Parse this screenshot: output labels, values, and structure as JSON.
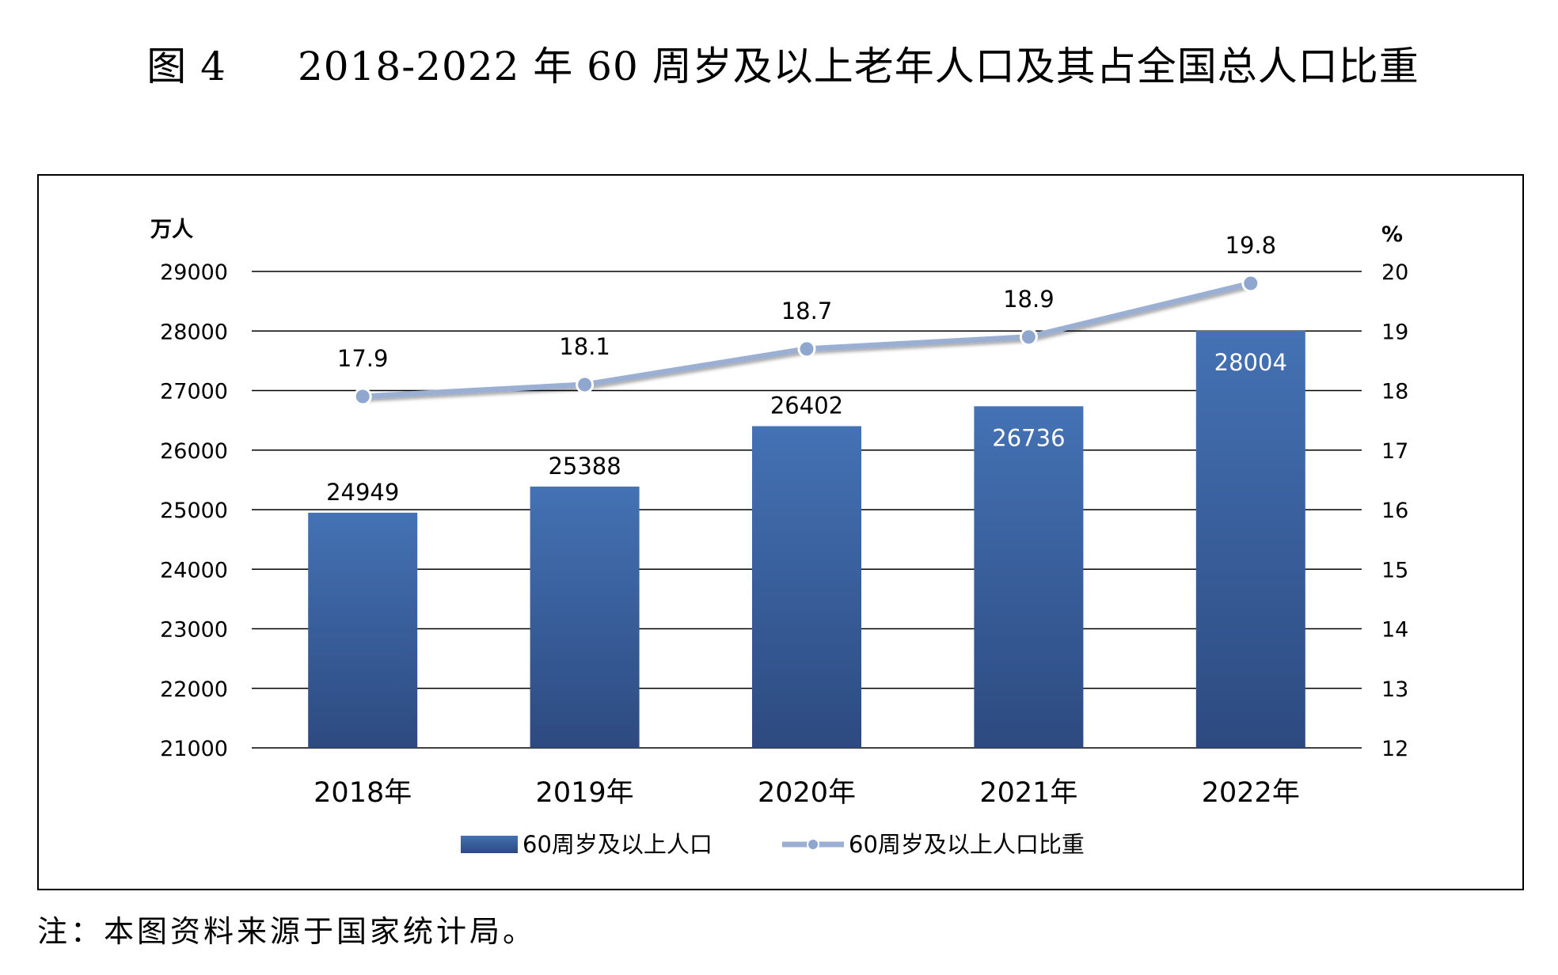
{
  "figure": {
    "label": "图 4",
    "title": "2018-2022 年 60 周岁及以上老年人口及其占全国总人口比重"
  },
  "note": "注：本图资料来源于国家统计局。",
  "colors": {
    "bar_top": "#4472b4",
    "bar_bottom": "#2d4a80",
    "line": "#9bafd3",
    "line_marker": "#8fa6cf",
    "gridline": "#000000"
  },
  "chart_data": {
    "type": "bar",
    "categories": [
      "2018年",
      "2019年",
      "2020年",
      "2021年",
      "2022年"
    ],
    "y_left": {
      "unit_label": "万人",
      "range": [
        21000,
        29000
      ],
      "ticks": [
        "21000",
        "22000",
        "23000",
        "24000",
        "25000",
        "26000",
        "27000",
        "28000",
        "29000"
      ]
    },
    "y_right": {
      "unit_label": "%",
      "range": [
        12,
        20
      ],
      "ticks": [
        "12",
        "13",
        "14",
        "15",
        "16",
        "17",
        "18",
        "19",
        "20"
      ]
    },
    "series": [
      {
        "name": "60周岁及以上人口",
        "type": "bar",
        "axis": "left",
        "values": [
          24949,
          25388,
          26402,
          26736,
          28004
        ],
        "labels": [
          "24949",
          "25388",
          "26402",
          "26736",
          "28004"
        ]
      },
      {
        "name": "60周岁及以上人口比重",
        "type": "line",
        "axis": "right",
        "values": [
          17.9,
          18.1,
          18.7,
          18.9,
          19.8
        ],
        "labels": [
          "17.9",
          "18.1",
          "18.7",
          "18.9",
          "19.8"
        ]
      }
    ],
    "grid": true,
    "legend": "bottom-center"
  }
}
